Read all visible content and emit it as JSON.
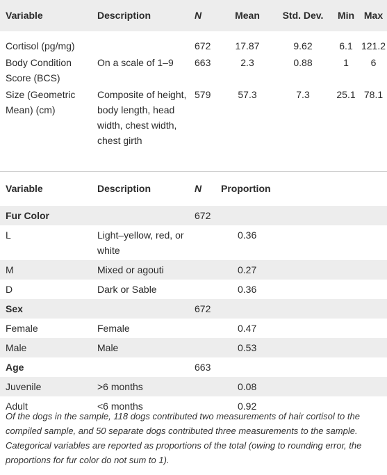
{
  "table1": {
    "headers": [
      "Variable",
      "Description",
      "N",
      "Mean",
      "Std. Dev.",
      "Min",
      "Max"
    ],
    "rows": [
      {
        "variable": "Cortisol (pg/mg)",
        "description": "",
        "n": "672",
        "mean": "17.87",
        "sd": "9.62",
        "min": "6.1",
        "max": "121.2"
      },
      {
        "variable": "Body Condition Score (BCS)",
        "description": "On a scale of 1–9",
        "n": "663",
        "mean": "2.3",
        "sd": "0.88",
        "min": "1",
        "max": "6"
      },
      {
        "variable": "Size (Geometric Mean) (cm)",
        "description": "Composite of height, body length, head width, chest width, chest girth",
        "n": "579",
        "mean": "57.3",
        "sd": "7.3",
        "min": "25.1",
        "max": "78.1"
      }
    ]
  },
  "table2": {
    "headers": [
      "Variable",
      "Description",
      "N",
      "Proportion"
    ],
    "groups": [
      {
        "name": "Fur Color",
        "n": "672",
        "rows": [
          {
            "variable": "L",
            "description": "Light–yellow, red, or white",
            "proportion": "0.36"
          },
          {
            "variable": "M",
            "description": "Mixed or agouti",
            "proportion": "0.27"
          },
          {
            "variable": "D",
            "description": "Dark or Sable",
            "proportion": "0.36"
          }
        ]
      },
      {
        "name": "Sex",
        "n": "672",
        "rows": [
          {
            "variable": "Female",
            "description": "Female",
            "proportion": "0.47"
          },
          {
            "variable": "Male",
            "description": "Male",
            "proportion": "0.53"
          }
        ]
      },
      {
        "name": "Age",
        "n": "663",
        "rows": [
          {
            "variable": "Juvenile",
            "description": ">6 months",
            "proportion": "0.08"
          },
          {
            "variable": "Adult",
            "description": "<6 months",
            "proportion": "0.92"
          }
        ]
      }
    ]
  },
  "footnote": "Of the dogs in the sample, 118 dogs contributed two measurements of hair cortisol to the compiled sample, and 50 separate dogs contributed three measurements to the sample. Categorical variables are reported as proportions of the total (owing to rounding error, the proportions for fur color do not sum to 1)."
}
